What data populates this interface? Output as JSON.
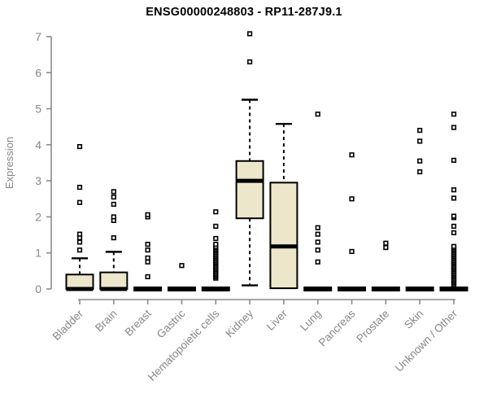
{
  "title": "ENSG00000248803 - RP11-287J9.1",
  "colors": {
    "background": "#ffffff",
    "axis": "#8a8a8a",
    "axis_text": "#878787",
    "title_text": "#000000",
    "box_fill": "#ece7cb",
    "box_border": "#000000",
    "median": "#000000",
    "outlier_stroke": "#000000",
    "outlier_fill": "#ffffff"
  },
  "chart_data": {
    "type": "boxplot",
    "title": "ENSG00000248803 - RP11-287J9.1",
    "xlabel": "",
    "ylabel": "Expression",
    "ylim": [
      0,
      7
    ],
    "yticks": [
      0,
      1,
      2,
      3,
      4,
      5,
      6,
      7
    ],
    "grid": false,
    "legend": "none",
    "categories": [
      "Bladder",
      "Brain",
      "Breast",
      "Gastric",
      "Hematopoietic cells",
      "Kidney",
      "Liver",
      "Lung",
      "Pancreas",
      "Prostate",
      "Skin",
      "Unknown / Other"
    ],
    "series": [
      {
        "name": "Bladder",
        "q1": 0,
        "median": 0,
        "q3": 0.4,
        "whisker_low": 0,
        "whisker_high": 0.85,
        "outliers": [
          1.08,
          1.3,
          1.42,
          1.52,
          2.4,
          2.82,
          3.95
        ]
      },
      {
        "name": "Brain",
        "q1": 0,
        "median": 0,
        "q3": 0.46,
        "whisker_low": 0,
        "whisker_high": 1.03,
        "outliers": [
          1.42,
          1.9,
          2.0,
          2.35,
          2.55,
          2.7
        ]
      },
      {
        "name": "Breast",
        "q1": 0,
        "median": 0,
        "q3": 0,
        "whisker_low": 0,
        "whisker_high": 0,
        "outliers": [
          0.34,
          0.75,
          0.86,
          1.08,
          1.24,
          2.0,
          2.06
        ]
      },
      {
        "name": "Gastric",
        "q1": 0,
        "median": 0,
        "q3": 0,
        "whisker_low": 0,
        "whisker_high": 0,
        "outliers": [
          0.65
        ]
      },
      {
        "name": "Hematopoietic cells",
        "q1": 0,
        "median": 0,
        "q3": 0,
        "whisker_low": 0,
        "whisker_high": 0,
        "outliers": [
          0.3,
          0.34,
          0.38,
          0.42,
          0.46,
          0.5,
          0.54,
          0.58,
          0.62,
          0.66,
          0.7,
          0.74,
          0.78,
          0.82,
          0.86,
          0.9,
          0.94,
          0.98,
          1.02,
          1.06,
          1.1,
          1.14,
          1.18,
          1.24,
          1.4,
          1.74,
          2.14
        ]
      },
      {
        "name": "Kidney",
        "q1": 1.96,
        "median": 3.0,
        "q3": 3.55,
        "whisker_low": 0.1,
        "whisker_high": 5.25,
        "outliers": [
          6.3,
          7.08
        ]
      },
      {
        "name": "Liver",
        "q1": 0.02,
        "median": 1.18,
        "q3": 2.95,
        "whisker_low": 0.02,
        "whisker_high": 4.58,
        "outliers": []
      },
      {
        "name": "Lung",
        "q1": 0,
        "median": 0,
        "q3": 0,
        "whisker_low": 0,
        "whisker_high": 0,
        "outliers": [
          0.75,
          1.08,
          1.3,
          1.52,
          1.7,
          4.85
        ]
      },
      {
        "name": "Pancreas",
        "q1": 0,
        "median": 0,
        "q3": 0,
        "whisker_low": 0,
        "whisker_high": 0,
        "outliers": [
          1.04,
          2.5,
          3.72
        ]
      },
      {
        "name": "Prostate",
        "q1": 0,
        "median": 0,
        "q3": 0,
        "whisker_low": 0,
        "whisker_high": 0,
        "outliers": [
          1.15,
          1.27
        ]
      },
      {
        "name": "Skin",
        "q1": 0,
        "median": 0,
        "q3": 0,
        "whisker_low": 0,
        "whisker_high": 0,
        "outliers": [
          3.25,
          3.55,
          4.1,
          4.4
        ]
      },
      {
        "name": "Unknown / Other",
        "q1": 0,
        "median": 0,
        "q3": 0,
        "whisker_low": 0,
        "whisker_high": 0,
        "outliers": [
          0.1,
          0.14,
          0.18,
          0.22,
          0.26,
          0.3,
          0.34,
          0.38,
          0.42,
          0.46,
          0.5,
          0.54,
          0.58,
          0.62,
          0.66,
          0.7,
          0.74,
          0.78,
          0.82,
          0.86,
          0.9,
          0.94,
          0.98,
          1.02,
          1.06,
          1.1,
          1.14,
          1.18,
          1.56,
          1.74,
          1.98,
          2.02,
          2.52,
          2.75,
          3.57,
          4.48,
          4.85
        ]
      }
    ]
  }
}
